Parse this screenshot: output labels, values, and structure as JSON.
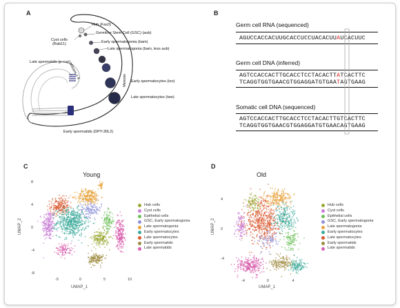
{
  "panels": {
    "a": "A",
    "b": "B",
    "c": "C",
    "d": "D"
  },
  "diagram": {
    "hub": "Hub (Fas3)",
    "gsc": "Germline Stem Cell (GSC) (aub)",
    "cyst": "Cyst cells\n(Rab11)",
    "early_sg": "Early spermatogonia (bam)",
    "late_sg": "Late spermatogonia (bam, less aub)",
    "mitosis": "Mitosis x 4",
    "late_spermatids": "Late spermatids (p-cup)",
    "meiosis": "Meiosis",
    "early_sc": "Early spermatocytes (tzo)",
    "late_sc": "Late spermatocytes (twe)",
    "early_spermatids": "Early spermatids (DPY-30L2)"
  },
  "sequences": {
    "rna_title": "Germ cell RNA (sequenced)",
    "rna_pre": "AGUCCACCACUUGCACCUCCUACACUU",
    "rna_hl": "A",
    "rna_post": "UCACUUC",
    "gdna_title": "Germ cell DNA (inferred)",
    "gdna_top_pre": "AGTCCACCACTTGCACCTCCTACACTT",
    "gdna_top_hl": "A",
    "gdna_top_post": "TCACTTC",
    "gdna_bot_pre": "TCAGGTGGTGAACGTGGAGGATGTGAA",
    "gdna_bot_hl": "T",
    "gdna_bot_post": "AGTGAAG",
    "soma_title": "Somatic cell DNA (sequenced)",
    "soma_top": "AGTCCACCACTTGCACCTCCTACACTTGTCACTTC",
    "soma_bot": "TCAGGTGGTGAACGTGGAGGATGTGAACAGTGAAG"
  },
  "umap_common": {
    "xlabel": "UMAP_1",
    "ylabel": "UMAP_2"
  },
  "legend": [
    {
      "label": "Hub cells",
      "color": "#9aa832"
    },
    {
      "label": "Cyst cells",
      "color": "#c97fd6"
    },
    {
      "label": "Epithelial cells",
      "color": "#6cbf5a"
    },
    {
      "label": "GSC, Early spermatogonia",
      "color": "#8e8ed8"
    },
    {
      "label": "Late spermatogonia",
      "color": "#e8a33c"
    },
    {
      "label": "Early spermatocytes",
      "color": "#3aa99a"
    },
    {
      "label": "Late spermatocytes",
      "color": "#d9562c"
    },
    {
      "label": "Early spermatids",
      "color": "#9e8a3e"
    },
    {
      "label": "Late spermatids",
      "color": "#d95fae"
    }
  ],
  "chart_data": [
    {
      "type": "scatter",
      "title": "Young",
      "xlabel": "UMAP_1",
      "ylabel": "UMAP_2",
      "xticks": [
        "-5",
        "0",
        "5",
        "10"
      ],
      "yticks": [
        "8",
        "4",
        "0",
        "-4",
        "-8"
      ],
      "xlim": [
        -9,
        11
      ],
      "ylim": [
        -8.5,
        8.5
      ],
      "clusters": [
        {
          "name": "Cyst cells",
          "center": [
            -6.8,
            0.5
          ],
          "spread": [
            1.2,
            2.5
          ],
          "n": 220
        },
        {
          "name": "Late spermatocytes",
          "center": [
            -4.5,
            3.8
          ],
          "spread": [
            1.8,
            1.4
          ],
          "n": 200
        },
        {
          "name": "Early spermatocytes",
          "center": [
            -2.0,
            1.0
          ],
          "spread": [
            2.8,
            2.2
          ],
          "n": 520
        },
        {
          "name": "Late spermatogonia",
          "center": [
            1.5,
            5.5
          ],
          "spread": [
            2.2,
            1.2
          ],
          "n": 230
        },
        {
          "name": "Late spermatogonia",
          "center": [
            4.0,
            7.5
          ],
          "spread": [
            0.5,
            0.5
          ],
          "n": 30
        },
        {
          "name": "GSC, Early spermatogonia",
          "center": [
            2.0,
            3.2
          ],
          "spread": [
            2.0,
            1.2
          ],
          "n": 130
        },
        {
          "name": "Epithelial cells",
          "center": [
            5.5,
            1.2
          ],
          "spread": [
            1.0,
            1.6
          ],
          "n": 110
        },
        {
          "name": "Hub cells",
          "center": [
            4.0,
            -1.8
          ],
          "spread": [
            1.6,
            1.3
          ],
          "n": 170
        },
        {
          "name": "Late spermatids",
          "center": [
            8.0,
            -1.0
          ],
          "spread": [
            0.8,
            2.4
          ],
          "n": 210
        },
        {
          "name": "Early spermatids",
          "center": [
            3.0,
            -5.5
          ],
          "spread": [
            1.4,
            1.0
          ],
          "n": 140
        },
        {
          "name": "Late spermatids",
          "center": [
            -3.5,
            -3.8
          ],
          "spread": [
            1.6,
            1.0
          ],
          "n": 90
        }
      ]
    },
    {
      "type": "scatter",
      "title": "Old",
      "xlabel": "UMAP_1",
      "ylabel": "UMAP_2",
      "xticks": [
        "-4",
        "0",
        "4"
      ],
      "yticks": [
        "4",
        "0",
        "-4"
      ],
      "xlim": [
        -6.5,
        7
      ],
      "ylim": [
        -6.5,
        6.5
      ],
      "clusters": [
        {
          "name": "Late spermatocytes",
          "center": [
            -1.0,
            1.0
          ],
          "spread": [
            2.6,
            2.6
          ],
          "n": 520
        },
        {
          "name": "Late spermatogonia",
          "center": [
            1.5,
            4.2
          ],
          "spread": [
            2.0,
            1.0
          ],
          "n": 200
        },
        {
          "name": "Early spermatocytes",
          "center": [
            2.5,
            1.5
          ],
          "spread": [
            1.6,
            1.6
          ],
          "n": 210
        },
        {
          "name": "Epithelial cells",
          "center": [
            3.5,
            -1.5
          ],
          "spread": [
            1.0,
            1.2
          ],
          "n": 100
        },
        {
          "name": "Late spermatids",
          "center": [
            -3.0,
            -4.8
          ],
          "spread": [
            1.8,
            1.0
          ],
          "n": 260
        },
        {
          "name": "Cyst cells",
          "center": [
            -4.5,
            0.5
          ],
          "spread": [
            0.8,
            1.8
          ],
          "n": 110
        },
        {
          "name": "Hub cells",
          "center": [
            -2.5,
            3.5
          ],
          "spread": [
            1.0,
            1.0
          ],
          "n": 90
        },
        {
          "name": "Early spermatids",
          "center": [
            2.0,
            -4.5
          ],
          "spread": [
            1.6,
            1.0
          ],
          "n": 150
        },
        {
          "name": "Early spermatocytes",
          "center": [
            4.5,
            -4.8
          ],
          "spread": [
            1.2,
            0.8
          ],
          "n": 110
        },
        {
          "name": "GSC, Early spermatogonia",
          "center": [
            0.0,
            -1.5
          ],
          "spread": [
            1.6,
            1.2
          ],
          "n": 80
        }
      ]
    }
  ]
}
